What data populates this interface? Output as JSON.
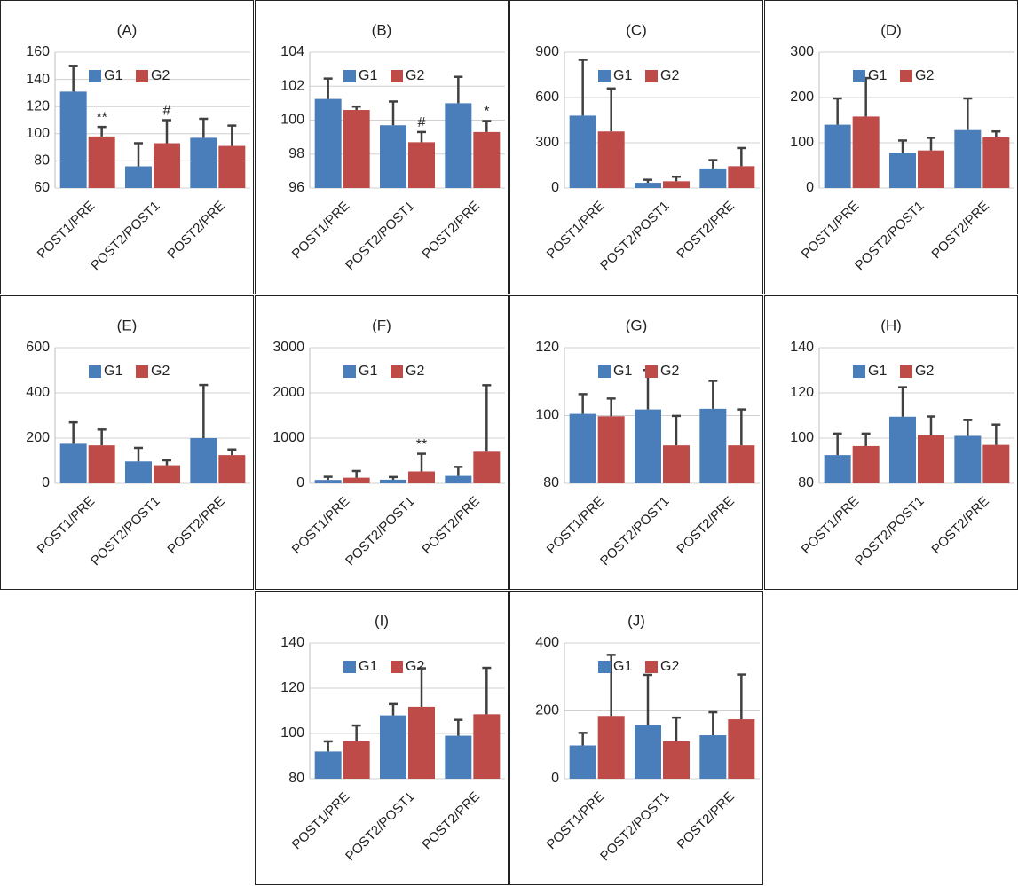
{
  "chart_data": [
    {
      "type": "bar",
      "title": "(A)",
      "categories": [
        "POST1/PRE",
        "POST2/POST1",
        "POST2/PRE"
      ],
      "ylim": [
        60,
        160
      ],
      "yticks": [
        60,
        80,
        100,
        120,
        140,
        160
      ],
      "grid": true,
      "series": [
        {
          "name": "G1",
          "color": "#4a7ebb",
          "values": [
            131,
            76,
            97
          ],
          "errors": [
            19,
            17,
            14
          ]
        },
        {
          "name": "G2",
          "color": "#be4b48",
          "values": [
            98,
            93,
            91
          ],
          "errors": [
            7,
            17,
            15
          ],
          "marks": [
            "**",
            "#",
            null
          ]
        }
      ]
    },
    {
      "type": "bar",
      "title": "(B)",
      "categories": [
        "POST1/PRE",
        "POST2/POST1",
        "POST2/PRE"
      ],
      "ylim": [
        96,
        104
      ],
      "yticks": [
        96,
        98,
        100,
        102,
        104
      ],
      "grid": true,
      "series": [
        {
          "name": "G1",
          "color": "#4a7ebb",
          "values": [
            101.25,
            99.7,
            101.0
          ],
          "errors": [
            1.2,
            1.4,
            1.55
          ]
        },
        {
          "name": "G2",
          "color": "#be4b48",
          "values": [
            100.6,
            98.7,
            99.3
          ],
          "errors": [
            0.2,
            0.6,
            0.65
          ],
          "marks": [
            null,
            "#",
            "*"
          ]
        }
      ]
    },
    {
      "type": "bar",
      "title": "(C)",
      "categories": [
        "POST1/PRE",
        "POST2/POST1",
        "POST2/PRE"
      ],
      "ylim": [
        0,
        900
      ],
      "yticks": [
        0,
        300,
        600,
        900
      ],
      "grid": true,
      "series": [
        {
          "name": "G1",
          "color": "#4a7ebb",
          "values": [
            480,
            35,
            130
          ],
          "errors": [
            370,
            20,
            55
          ]
        },
        {
          "name": "G2",
          "color": "#be4b48",
          "values": [
            375,
            45,
            145
          ],
          "errors": [
            285,
            30,
            120
          ]
        }
      ]
    },
    {
      "type": "bar",
      "title": "(D)",
      "categories": [
        "POST1/PRE",
        "POST2/POST1",
        "POST2/PRE"
      ],
      "ylim": [
        0,
        300
      ],
      "yticks": [
        0,
        100,
        200,
        300
      ],
      "grid": true,
      "series": [
        {
          "name": "G1",
          "color": "#4a7ebb",
          "values": [
            140,
            78,
            128
          ],
          "errors": [
            58,
            27,
            70
          ]
        },
        {
          "name": "G2",
          "color": "#be4b48",
          "values": [
            158,
            83,
            112
          ],
          "errors": [
            85,
            28,
            13
          ]
        }
      ]
    },
    {
      "type": "bar",
      "title": "(E)",
      "categories": [
        "POST1/PRE",
        "POST2/POST1",
        "POST2/PRE"
      ],
      "ylim": [
        0,
        600
      ],
      "yticks": [
        0,
        200,
        400,
        600
      ],
      "grid": true,
      "series": [
        {
          "name": "G1",
          "color": "#4a7ebb",
          "values": [
            175,
            97,
            200
          ],
          "errors": [
            95,
            60,
            235
          ]
        },
        {
          "name": "G2",
          "color": "#be4b48",
          "values": [
            168,
            80,
            125
          ],
          "errors": [
            70,
            22,
            25
          ]
        }
      ]
    },
    {
      "type": "bar",
      "title": "(F)",
      "categories": [
        "POST1/PRE",
        "POST2/POST1",
        "POST2/PRE"
      ],
      "ylim": [
        0,
        3000
      ],
      "yticks": [
        0,
        1000,
        2000,
        3000
      ],
      "grid": true,
      "series": [
        {
          "name": "G1",
          "color": "#4a7ebb",
          "values": [
            75,
            80,
            165
          ],
          "errors": [
            70,
            60,
            200
          ]
        },
        {
          "name": "G2",
          "color": "#be4b48",
          "values": [
            125,
            265,
            700
          ],
          "errors": [
            150,
            390,
            1470
          ],
          "marks": [
            null,
            "**",
            null
          ]
        }
      ]
    },
    {
      "type": "bar",
      "title": "(G)",
      "categories": [
        "POST1/PRE",
        "POST2/POST1",
        "POST2/PRE"
      ],
      "ylim": [
        80,
        120
      ],
      "yticks": [
        80,
        100,
        120
      ],
      "grid": true,
      "series": [
        {
          "name": "G1",
          "color": "#4a7ebb",
          "values": [
            100.5,
            101.8,
            102
          ],
          "errors": [
            5.8,
            11.6,
            8.2
          ]
        },
        {
          "name": "G2",
          "color": "#be4b48",
          "values": [
            99.8,
            91.2,
            91.2
          ],
          "errors": [
            5.2,
            8.7,
            10.6
          ]
        }
      ]
    },
    {
      "type": "bar",
      "title": "(H)",
      "categories": [
        "POST1/PRE",
        "POST2/POST1",
        "POST2/PRE"
      ],
      "ylim": [
        80,
        140
      ],
      "yticks": [
        80,
        100,
        120,
        140
      ],
      "grid": true,
      "series": [
        {
          "name": "G1",
          "color": "#4a7ebb",
          "values": [
            92.5,
            109.5,
            101
          ],
          "errors": [
            9.5,
            13,
            7
          ]
        },
        {
          "name": "G2",
          "color": "#be4b48",
          "values": [
            96.5,
            101.3,
            97
          ],
          "errors": [
            5.5,
            8.3,
            9
          ]
        }
      ]
    },
    {
      "type": "bar",
      "title": "(I)",
      "categories": [
        "POST1/PRE",
        "POST2/POST1",
        "POST2/PRE"
      ],
      "ylim": [
        80,
        140
      ],
      "yticks": [
        80,
        100,
        120,
        140
      ],
      "grid": true,
      "series": [
        {
          "name": "G1",
          "color": "#4a7ebb",
          "values": [
            92,
            108,
            99
          ],
          "errors": [
            4.5,
            5,
            7
          ]
        },
        {
          "name": "G2",
          "color": "#be4b48",
          "values": [
            96.5,
            111.8,
            108.5
          ],
          "errors": [
            7,
            17,
            20.5
          ]
        }
      ]
    },
    {
      "type": "bar",
      "title": "(J)",
      "categories": [
        "POST1/PRE",
        "POST2/POST1",
        "POST2/PRE"
      ],
      "ylim": [
        0,
        400
      ],
      "yticks": [
        0,
        200,
        400
      ],
      "grid": true,
      "series": [
        {
          "name": "G1",
          "color": "#4a7ebb",
          "values": [
            98,
            158,
            128
          ],
          "errors": [
            37,
            148,
            68
          ]
        },
        {
          "name": "G2",
          "color": "#be4b48",
          "values": [
            185,
            110,
            175
          ],
          "errors": [
            180,
            70,
            132
          ]
        }
      ]
    }
  ]
}
